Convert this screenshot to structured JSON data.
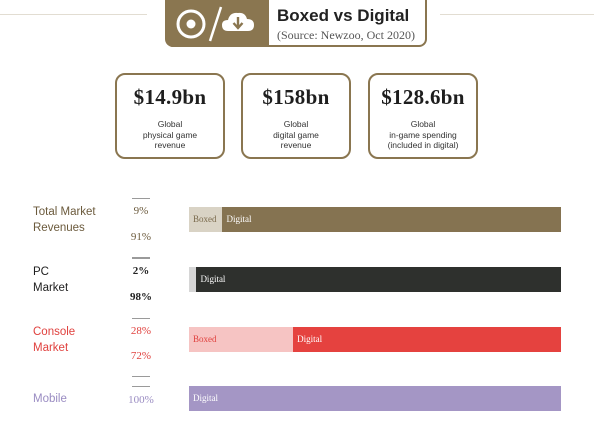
{
  "header": {
    "title": "Boxed vs Digital",
    "source": "(Source: Newzoo, Oct 2020)",
    "icons": [
      "disc-icon",
      "cloud-download-icon"
    ]
  },
  "stats": [
    {
      "value": "$14.9bn",
      "label_lines": [
        "Global",
        "physical game",
        "revenue"
      ]
    },
    {
      "value": "$158bn",
      "label_lines": [
        "Global",
        "digital game",
        "revenue"
      ]
    },
    {
      "value": "$128.6bn",
      "label_lines": [
        "Global",
        "in-game spending",
        "(included in digital)"
      ]
    }
  ],
  "colors": {
    "accent": "#8a7650",
    "total_boxed": "#d9d3c5",
    "total_digital": "#857351",
    "pc_boxed": "#d6d6d6",
    "pc_digital": "#2e302d",
    "console_boxed": "#f6c4c3",
    "console_digital": "#e5423f",
    "mobile_digital": "#a496c5",
    "label_total": "#6b5a3c",
    "label_pc": "#1e1e1e",
    "label_console": "#e0413e",
    "label_mobile": "#9a8cc2"
  },
  "chart_data": {
    "type": "bar",
    "categories": [
      "Total Market Revenues",
      "PC Market",
      "Console Market",
      "Mobile"
    ],
    "series": [
      {
        "name": "Boxed",
        "values": [
          9,
          2,
          28,
          0
        ]
      },
      {
        "name": "Digital",
        "values": [
          91,
          98,
          72,
          100
        ]
      }
    ],
    "ylim": [
      0,
      100
    ],
    "rows": [
      {
        "label_lines": [
          "Total Market",
          "Revenues"
        ],
        "pct_top": "9%",
        "pct_bottom": "91%",
        "boxed_text": "Boxed",
        "digital_text": "Digital"
      },
      {
        "label_lines": [
          "PC",
          "Market"
        ],
        "pct_top": "2%",
        "pct_bottom": "98%",
        "boxed_text": "",
        "digital_text": "Digital"
      },
      {
        "label_lines": [
          "Console",
          "Market"
        ],
        "pct_top": "28%",
        "pct_bottom": "72%",
        "boxed_text": "Boxed",
        "digital_text": "Digital"
      },
      {
        "label_lines": [
          "Mobile"
        ],
        "pct_top": "",
        "pct_bottom": "100%",
        "boxed_text": "",
        "digital_text": "Digital"
      }
    ]
  }
}
